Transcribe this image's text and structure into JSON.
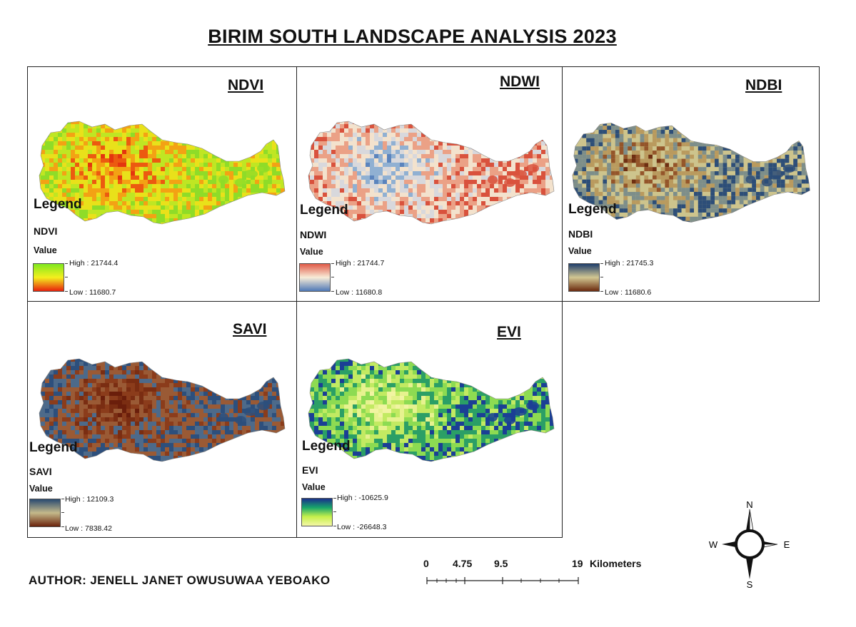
{
  "map": {
    "title": "BIRIM SOUTH LANDSCAPE ANALYSIS 2023",
    "author": "AUTHOR: JENELL JANET OWUSUWAA YEBOAKO"
  },
  "panels": [
    {
      "id": "ndvi",
      "title": "NDVI",
      "legend_heading": "Legend",
      "legend_layer": "NDVI",
      "legend_value": "Value",
      "high_label": "High : 21744.4",
      "low_label": "Low : 11680.7",
      "ramp_colors": [
        "#7fe81f",
        "#f4ef1e",
        "#e8200c"
      ],
      "map_colors": [
        "#e4350e",
        "#ec5a10",
        "#f3a214",
        "#e9e11a",
        "#bfe623",
        "#8fdc28"
      ]
    },
    {
      "id": "ndwi",
      "title": "NDWI",
      "legend_heading": "Legend",
      "legend_layer": "NDWI",
      "legend_value": "Value",
      "high_label": "High : 21744.7",
      "low_label": "Low : 11680.8",
      "ramp_colors": [
        "#e05a48",
        "#f8ecd8",
        "#4f79b7"
      ],
      "map_colors": [
        "#5b84bd",
        "#90b0d2",
        "#d8d8dc",
        "#f3e2cd",
        "#eba186",
        "#d9523d"
      ]
    },
    {
      "id": "ndbi",
      "title": "NDBI",
      "legend_heading": "Legend",
      "legend_layer": "NDBI",
      "legend_value": "Value",
      "high_label": "High : 21745.3",
      "low_label": "Low : 11680.6",
      "ramp_colors": [
        "#1f3e6c",
        "#d2c792",
        "#6b2a0e"
      ],
      "map_colors": [
        "#6f2f12",
        "#94552a",
        "#b99a5e",
        "#cdc48d",
        "#7d8e8a",
        "#2d4e78"
      ]
    },
    {
      "id": "savi",
      "title": "SAVI",
      "legend_heading": "Legend",
      "legend_layer": "SAVI",
      "legend_value": "Value",
      "high_label": "High : 12109.3",
      "low_label": "Low : 7838.42",
      "ramp_colors": [
        "#2a4a70",
        "#c4b98a",
        "#6b230c"
      ],
      "map_colors": [
        "#6a1e0b",
        "#7a2d12",
        "#8b3c1b",
        "#9a5a35",
        "#4d6a8a",
        "#2d4f7c"
      ]
    },
    {
      "id": "evi",
      "title": "EVI",
      "legend_heading": "Legend",
      "legend_layer": "EVI",
      "legend_value": "Value",
      "high_label": "High : -10625.9",
      "low_label": "Low : -26648.3",
      "ramp_colors": [
        "#1a2f8c",
        "#18a66a",
        "#c6f04b",
        "#f4f7a6"
      ],
      "map_colors": [
        "#f1f4a2",
        "#e6f28f",
        "#c2ea62",
        "#8ddb52",
        "#2b9f66",
        "#1b3f95"
      ]
    }
  ],
  "scale": {
    "ticks": [
      "0",
      "4.75",
      "9.5",
      "19"
    ],
    "unit": "Kilometers"
  },
  "compass": {
    "n": "N",
    "s": "S",
    "e": "E",
    "w": "W"
  },
  "icons": {
    "north_arrow": "north-arrow-icon"
  }
}
